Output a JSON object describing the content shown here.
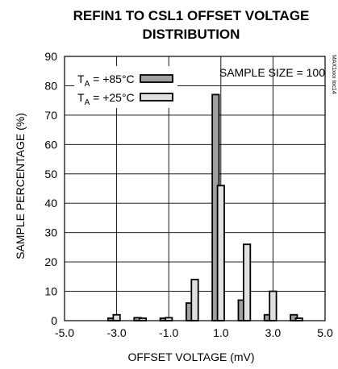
{
  "chart_data": {
    "type": "bar",
    "title_line1": "REFIN1 TO CSL1 OFFSET VOLTAGE",
    "title_line2": "DISTRIBUTION",
    "xlabel": "OFFSET VOLTAGE (mV)",
    "ylabel": "SAMPLE PERCENTAGE (%)",
    "xlim": [
      -5.0,
      5.0
    ],
    "ylim": [
      0,
      90
    ],
    "x_ticks": [
      "-5.0",
      "-3.0",
      "-1.0",
      "1.0",
      "3.0",
      "5.0"
    ],
    "y_ticks": [
      "0",
      "10",
      "20",
      "30",
      "40",
      "50",
      "60",
      "70",
      "80",
      "90"
    ],
    "annotation": "SAMPLE SIZE = 100",
    "side_code": "MAX1xxx toc14",
    "series": [
      {
        "name_main": "T",
        "name_sub": "A",
        "name_rest": " = +85°C",
        "fill": "#a0a0a0",
        "points": [
          {
            "x": -3.2,
            "y": 0
          },
          {
            "x": -2.2,
            "y": 1
          },
          {
            "x": -1.2,
            "y": 0
          },
          {
            "x": -0.2,
            "y": 6
          },
          {
            "x": 0.8,
            "y": 77
          },
          {
            "x": 1.8,
            "y": 7
          },
          {
            "x": 2.8,
            "y": 2
          },
          {
            "x": 3.8,
            "y": 2
          }
        ]
      },
      {
        "name_main": "T",
        "name_sub": "A",
        "name_rest": " = +25°C",
        "fill": "#e0e0e0",
        "points": [
          {
            "x": -3.0,
            "y": 2
          },
          {
            "x": -2.0,
            "y": 0
          },
          {
            "x": -1.0,
            "y": 1
          },
          {
            "x": 0.0,
            "y": 14
          },
          {
            "x": 1.0,
            "y": 46
          },
          {
            "x": 2.0,
            "y": 26
          },
          {
            "x": 3.0,
            "y": 10
          },
          {
            "x": 4.0,
            "y": 0
          }
        ]
      }
    ]
  }
}
